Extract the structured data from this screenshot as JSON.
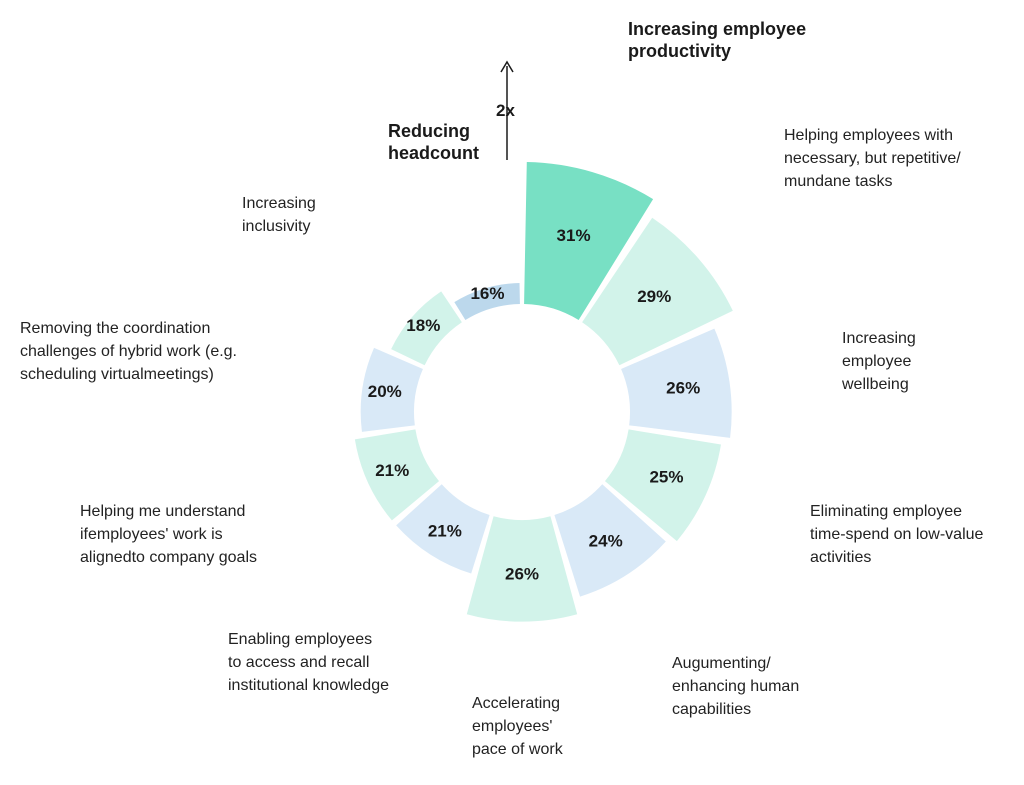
{
  "chart_data": {
    "type": "pie",
    "style": "radial-segments",
    "segments": [
      {
        "label": "Increasing employee productivity",
        "value": 31,
        "display": "31%",
        "color": "#78e0c4"
      },
      {
        "label": "Helping employees with necessary, but repetitive/ mundane tasks",
        "value": 29,
        "display": "29%",
        "color": "#d2f3ea"
      },
      {
        "label": "Increasing employee wellbeing",
        "value": 26,
        "display": "26%",
        "color": "#d9e9f7"
      },
      {
        "label": "Eliminating employee time-spend on low-value activities",
        "value": 25,
        "display": "25%",
        "color": "#d2f3ea"
      },
      {
        "label": "Augumenting/ enhancing human capabilities",
        "value": 24,
        "display": "24%",
        "color": "#d9e9f7"
      },
      {
        "label": "Accelerating employees' pace of work",
        "value": 26,
        "display": "26%",
        "color": "#d2f3ea"
      },
      {
        "label": "Enabling employees to access and recall institutional knowledge",
        "value": 21,
        "display": "21%",
        "color": "#d9e9f7"
      },
      {
        "label": "Helping me understand ifemployees' work is alignedto company goals",
        "value": 21,
        "display": "21%",
        "color": "#d2f3ea"
      },
      {
        "label": "Removing the coordination challenges of hybrid work (e.g. scheduling virtualmeetings)",
        "value": 20,
        "display": "20%",
        "color": "#d9e9f7"
      },
      {
        "label": "Increasing inclusivity",
        "value": 18,
        "display": "18%",
        "color": "#d2f3ea"
      },
      {
        "label": "Reducing headcount",
        "value": 16,
        "display": "16%",
        "color": "#bcd8ec"
      }
    ],
    "annotation": {
      "text": "2x",
      "comparison": [
        "Increasing employee productivity",
        "Reducing headcount"
      ]
    }
  },
  "labels": {
    "productivity": [
      "Increasing employee",
      "productivity"
    ],
    "repetitive": [
      "Helping employees with",
      "necessary, but repetitive/",
      "mundane tasks"
    ],
    "wellbeing": [
      "Increasing",
      "employee",
      "wellbeing"
    ],
    "low_value": [
      "Eliminating employee",
      "time-spend on low-value",
      "activities"
    ],
    "augment": [
      "Augumenting/",
      "enhancing human",
      "capabilities"
    ],
    "pace": [
      "Accelerating",
      "employees'",
      "pace of work"
    ],
    "knowledge": [
      "Enabling employees",
      "to access and recall",
      "institutional knowledge"
    ],
    "aligned": [
      "Helping me understand",
      "ifemployees' work is",
      "alignedto company goals"
    ],
    "hybrid": [
      "Removing the coordination",
      "challenges of hybrid work (e.g.",
      "scheduling virtualmeetings)"
    ],
    "inclusivity": [
      "Increasing",
      "inclusivity"
    ],
    "headcount": [
      "Reducing",
      "headcount"
    ]
  },
  "multiplier": "2x"
}
